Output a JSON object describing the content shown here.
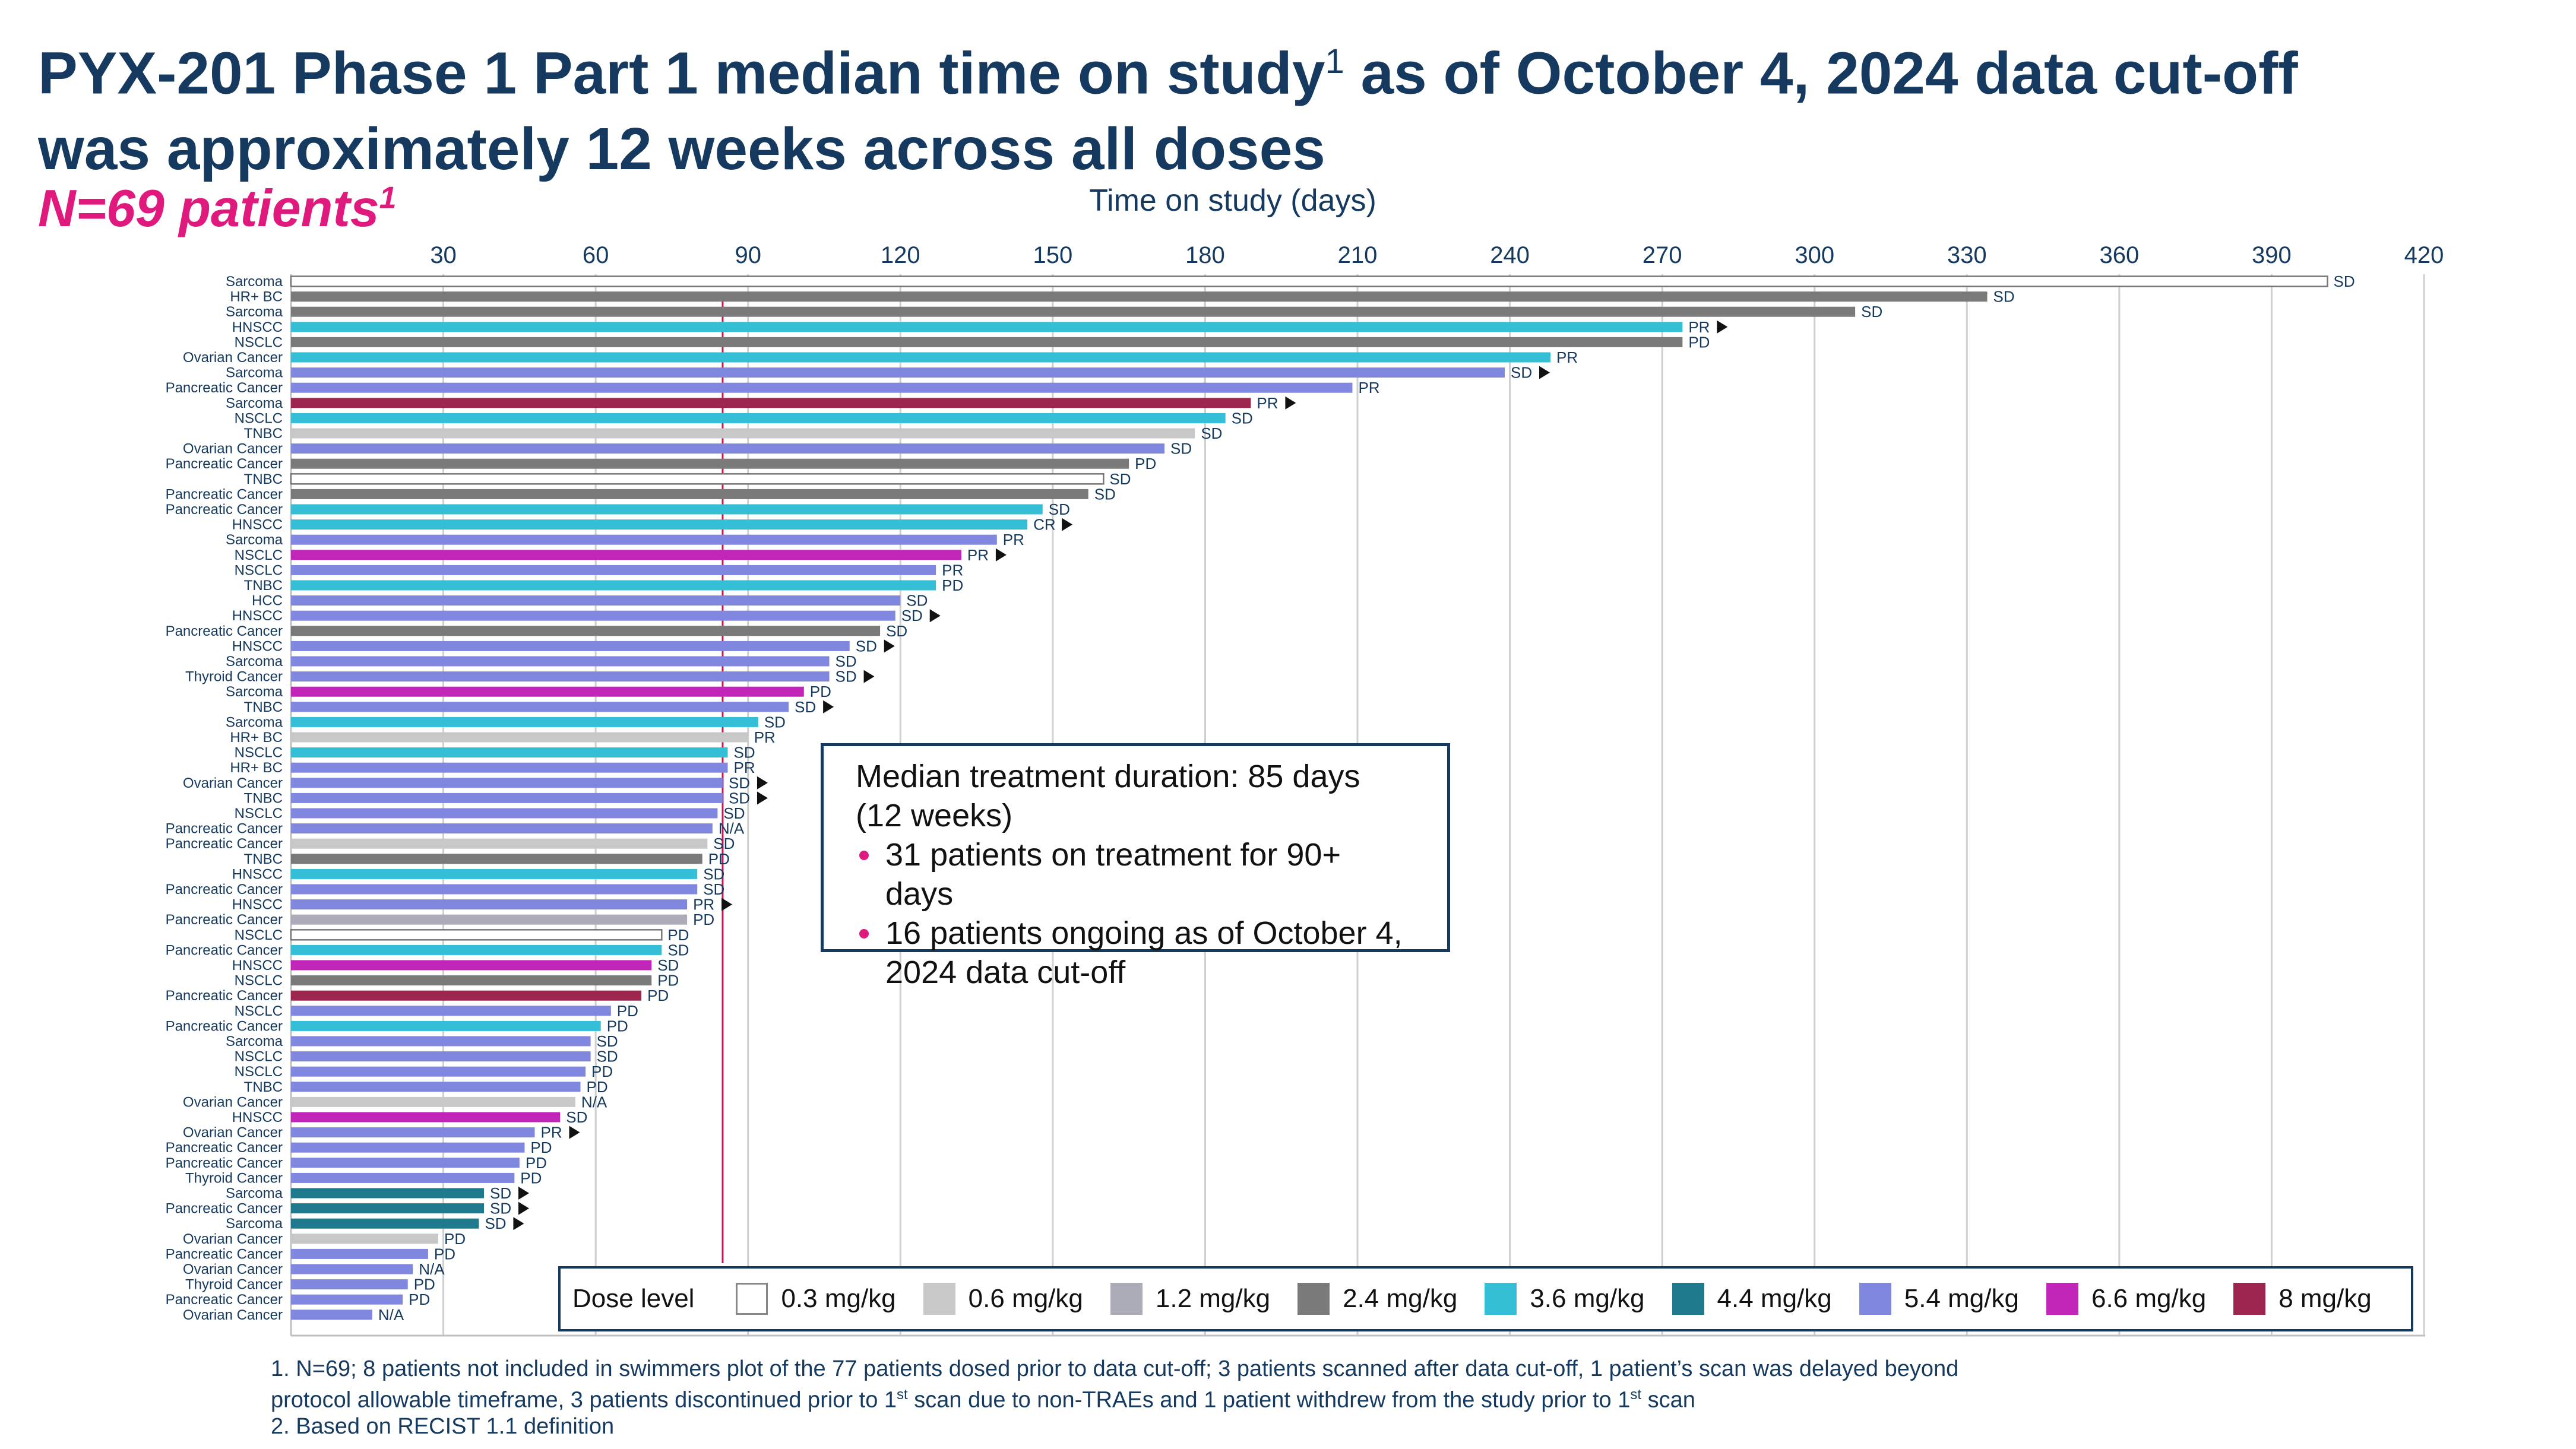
{
  "title": {
    "line1_a": "PYX-201 Phase 1 Part 1 median time on study",
    "line1_sup": "1",
    "line1_b": " as of October 4, 2024 data cut-off",
    "line2": "was approximately 12 weeks across all doses"
  },
  "subtitle": {
    "text": "N=69 patients",
    "sup": "1"
  },
  "median_box": {
    "line1": "Median treatment duration: 85 days",
    "line2": "(12 weeks)",
    "bullet1": "31 patients on treatment for 90+ days",
    "bullet2": "16 patients ongoing as of October 4, 2024 data cut-off"
  },
  "legend": {
    "title": "Dose level",
    "items": [
      {
        "label": "0.3 mg/kg",
        "color": "#ffffff",
        "border": "#888888"
      },
      {
        "label": "0.6 mg/kg",
        "color": "#c8c8c8",
        "border": "#c8c8c8"
      },
      {
        "label": "1.2 mg/kg",
        "color": "#acacb8",
        "border": "#acacb8"
      },
      {
        "label": "2.4 mg/kg",
        "color": "#7a7a7a",
        "border": "#7a7a7a"
      },
      {
        "label": "3.6 mg/kg",
        "color": "#35bfd6",
        "border": "#35bfd6"
      },
      {
        "label": "4.4 mg/kg",
        "color": "#1e7a8c",
        "border": "#1e7a8c"
      },
      {
        "label": "5.4 mg/kg",
        "color": "#7f87de",
        "border": "#7f87de"
      },
      {
        "label": "6.6 mg/kg",
        "color": "#c226b8",
        "border": "#c226b8"
      },
      {
        "label": "8 mg/kg",
        "color": "#9e2550",
        "border": "#9e2550"
      }
    ]
  },
  "footnotes": {
    "f1_a": "1.  N=69; 8 patients not included in swimmers plot of the 77 patients dosed prior to data cut-off; 3 patients scanned after data cut-off, 1 patient’s scan was delayed beyond",
    "f1_b": "protocol allowable timeframe, 3 patients discontinued prior to 1",
    "f1_sup1": "st",
    "f1_c": " scan due to non-TRAEs and 1 patient withdrew from the study prior to 1",
    "f1_sup2": "st",
    "f1_d": " scan",
    "f2": "2. Based on RECIST 1.1 definition"
  },
  "chart_data": {
    "type": "bar",
    "orientation": "horizontal",
    "xlabel": "Time on study (days)",
    "xlim": [
      0,
      420
    ],
    "xticks": [
      30,
      60,
      90,
      120,
      150,
      180,
      210,
      240,
      270,
      300,
      330,
      360,
      390,
      420
    ],
    "median_days": 85,
    "dose_colors": {
      "0.3": "#ffffff",
      "0.6": "#c8c8c8",
      "1.2": "#acacb8",
      "2.4": "#7a7a7a",
      "3.6": "#35bfd6",
      "4.4": "#1e7a8c",
      "5.4": "#7f87de",
      "6.6": "#c226b8",
      "8": "#9e2550"
    },
    "patients": [
      {
        "label": "Sarcoma",
        "days": 401,
        "dose": "0.3",
        "response": "SD",
        "ongoing": false
      },
      {
        "label": "HR+ BC",
        "days": 334,
        "dose": "2.4",
        "response": "SD",
        "ongoing": false
      },
      {
        "label": "Sarcoma",
        "days": 308,
        "dose": "2.4",
        "response": "SD",
        "ongoing": false
      },
      {
        "label": "HNSCC",
        "days": 274,
        "dose": "3.6",
        "response": "PR",
        "ongoing": true
      },
      {
        "label": "NSCLC",
        "days": 274,
        "dose": "2.4",
        "response": "PD",
        "ongoing": false
      },
      {
        "label": "Ovarian Cancer",
        "days": 248,
        "dose": "3.6",
        "response": "PR",
        "ongoing": false
      },
      {
        "label": "Sarcoma",
        "days": 239,
        "dose": "5.4",
        "response": "SD",
        "ongoing": true
      },
      {
        "label": "Pancreatic Cancer",
        "days": 209,
        "dose": "5.4",
        "response": "PR",
        "ongoing": false
      },
      {
        "label": "Sarcoma",
        "days": 189,
        "dose": "8",
        "response": "PR",
        "ongoing": true
      },
      {
        "label": "NSCLC",
        "days": 184,
        "dose": "3.6",
        "response": "SD",
        "ongoing": false
      },
      {
        "label": "TNBC",
        "days": 178,
        "dose": "0.6",
        "response": "SD",
        "ongoing": false
      },
      {
        "label": "Ovarian Cancer",
        "days": 172,
        "dose": "5.4",
        "response": "SD",
        "ongoing": false
      },
      {
        "label": "Pancreatic Cancer",
        "days": 165,
        "dose": "2.4",
        "response": "PD",
        "ongoing": false
      },
      {
        "label": "TNBC",
        "days": 160,
        "dose": "0.3",
        "response": "SD",
        "ongoing": false
      },
      {
        "label": "Pancreatic Cancer",
        "days": 157,
        "dose": "2.4",
        "response": "SD",
        "ongoing": false
      },
      {
        "label": "Pancreatic Cancer",
        "days": 148,
        "dose": "3.6",
        "response": "SD",
        "ongoing": false
      },
      {
        "label": "HNSCC",
        "days": 145,
        "dose": "3.6",
        "response": "CR",
        "ongoing": true
      },
      {
        "label": "Sarcoma",
        "days": 139,
        "dose": "5.4",
        "response": "PR",
        "ongoing": false
      },
      {
        "label": "NSCLC",
        "days": 132,
        "dose": "6.6",
        "response": "PR",
        "ongoing": true
      },
      {
        "label": "NSCLC",
        "days": 127,
        "dose": "5.4",
        "response": "PR",
        "ongoing": false
      },
      {
        "label": "TNBC",
        "days": 127,
        "dose": "3.6",
        "response": "PD",
        "ongoing": false
      },
      {
        "label": "HCC",
        "days": 120,
        "dose": "5.4",
        "response": "SD",
        "ongoing": false
      },
      {
        "label": "HNSCC",
        "days": 119,
        "dose": "5.4",
        "response": "SD",
        "ongoing": true
      },
      {
        "label": "Pancreatic Cancer",
        "days": 116,
        "dose": "2.4",
        "response": "SD",
        "ongoing": false
      },
      {
        "label": "HNSCC",
        "days": 110,
        "dose": "5.4",
        "response": "SD",
        "ongoing": true
      },
      {
        "label": "Sarcoma",
        "days": 106,
        "dose": "5.4",
        "response": "SD",
        "ongoing": false
      },
      {
        "label": "Thyroid Cancer",
        "days": 106,
        "dose": "5.4",
        "response": "SD",
        "ongoing": true
      },
      {
        "label": "Sarcoma",
        "days": 101,
        "dose": "6.6",
        "response": "PD",
        "ongoing": false
      },
      {
        "label": "TNBC",
        "days": 98,
        "dose": "5.4",
        "response": "SD",
        "ongoing": true
      },
      {
        "label": "Sarcoma",
        "days": 92,
        "dose": "3.6",
        "response": "SD",
        "ongoing": false
      },
      {
        "label": "HR+ BC",
        "days": 90,
        "dose": "0.6",
        "response": "PR",
        "ongoing": false
      },
      {
        "label": "NSCLC",
        "days": 86,
        "dose": "3.6",
        "response": "SD",
        "ongoing": false
      },
      {
        "label": "HR+ BC",
        "days": 86,
        "dose": "5.4",
        "response": "PR",
        "ongoing": false
      },
      {
        "label": "Ovarian Cancer",
        "days": 85,
        "dose": "5.4",
        "response": "SD",
        "ongoing": true
      },
      {
        "label": "TNBC",
        "days": 85,
        "dose": "5.4",
        "response": "SD",
        "ongoing": true
      },
      {
        "label": "NSCLC",
        "days": 84,
        "dose": "5.4",
        "response": "SD",
        "ongoing": false
      },
      {
        "label": "Pancreatic Cancer",
        "days": 83,
        "dose": "5.4",
        "response": "N/A",
        "ongoing": false
      },
      {
        "label": "Pancreatic Cancer",
        "days": 82,
        "dose": "0.6",
        "response": "SD",
        "ongoing": false
      },
      {
        "label": "TNBC",
        "days": 81,
        "dose": "2.4",
        "response": "PD",
        "ongoing": false
      },
      {
        "label": "HNSCC",
        "days": 80,
        "dose": "3.6",
        "response": "SD",
        "ongoing": false
      },
      {
        "label": "Pancreatic Cancer",
        "days": 80,
        "dose": "5.4",
        "response": "SD",
        "ongoing": false
      },
      {
        "label": "HNSCC",
        "days": 78,
        "dose": "5.4",
        "response": "PR",
        "ongoing": true
      },
      {
        "label": "Pancreatic Cancer",
        "days": 78,
        "dose": "1.2",
        "response": "PD",
        "ongoing": false
      },
      {
        "label": "NSCLC",
        "days": 73,
        "dose": "0.3",
        "response": "PD",
        "ongoing": false
      },
      {
        "label": "Pancreatic Cancer",
        "days": 73,
        "dose": "3.6",
        "response": "SD",
        "ongoing": false
      },
      {
        "label": "HNSCC",
        "days": 71,
        "dose": "6.6",
        "response": "SD",
        "ongoing": false
      },
      {
        "label": "NSCLC",
        "days": 71,
        "dose": "2.4",
        "response": "PD",
        "ongoing": false
      },
      {
        "label": "Pancreatic Cancer",
        "days": 69,
        "dose": "8",
        "response": "PD",
        "ongoing": false
      },
      {
        "label": "NSCLC",
        "days": 63,
        "dose": "5.4",
        "response": "PD",
        "ongoing": false
      },
      {
        "label": "Pancreatic Cancer",
        "days": 61,
        "dose": "3.6",
        "response": "PD",
        "ongoing": false
      },
      {
        "label": "Sarcoma",
        "days": 59,
        "dose": "5.4",
        "response": "SD",
        "ongoing": false
      },
      {
        "label": "NSCLC",
        "days": 59,
        "dose": "5.4",
        "response": "SD",
        "ongoing": false
      },
      {
        "label": "NSCLC",
        "days": 58,
        "dose": "5.4",
        "response": "PD",
        "ongoing": false
      },
      {
        "label": "TNBC",
        "days": 57,
        "dose": "5.4",
        "response": "PD",
        "ongoing": false
      },
      {
        "label": "Ovarian Cancer",
        "days": 56,
        "dose": "0.6",
        "response": "N/A",
        "ongoing": false
      },
      {
        "label": "HNSCC",
        "days": 53,
        "dose": "6.6",
        "response": "SD",
        "ongoing": false
      },
      {
        "label": "Ovarian Cancer",
        "days": 48,
        "dose": "5.4",
        "response": "PR",
        "ongoing": true
      },
      {
        "label": "Pancreatic Cancer",
        "days": 46,
        "dose": "5.4",
        "response": "PD",
        "ongoing": false
      },
      {
        "label": "Pancreatic Cancer",
        "days": 45,
        "dose": "5.4",
        "response": "PD",
        "ongoing": false
      },
      {
        "label": "Thyroid Cancer",
        "days": 44,
        "dose": "5.4",
        "response": "PD",
        "ongoing": false
      },
      {
        "label": "Sarcoma",
        "days": 38,
        "dose": "4.4",
        "response": "SD",
        "ongoing": true
      },
      {
        "label": "Pancreatic Cancer",
        "days": 38,
        "dose": "4.4",
        "response": "SD",
        "ongoing": true
      },
      {
        "label": "Sarcoma",
        "days": 37,
        "dose": "4.4",
        "response": "SD",
        "ongoing": true
      },
      {
        "label": "Ovarian Cancer",
        "days": 29,
        "dose": "0.6",
        "response": "PD",
        "ongoing": false
      },
      {
        "label": "Pancreatic Cancer",
        "days": 27,
        "dose": "5.4",
        "response": "PD",
        "ongoing": false
      },
      {
        "label": "Ovarian Cancer",
        "days": 24,
        "dose": "5.4",
        "response": "N/A",
        "ongoing": false
      },
      {
        "label": "Thyroid Cancer",
        "days": 23,
        "dose": "5.4",
        "response": "PD",
        "ongoing": false
      },
      {
        "label": "Pancreatic Cancer",
        "days": 22,
        "dose": "5.4",
        "response": "PD",
        "ongoing": false
      },
      {
        "label": "Ovarian Cancer",
        "days": 16,
        "dose": "5.4",
        "response": "N/A",
        "ongoing": false
      }
    ]
  }
}
